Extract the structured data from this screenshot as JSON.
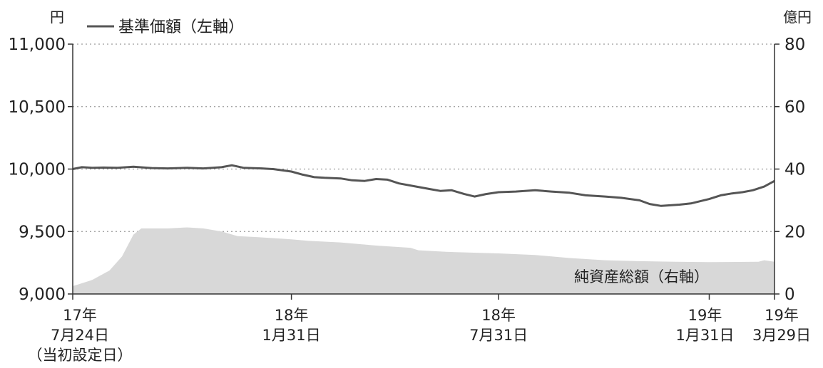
{
  "chart_data": {
    "type": "line",
    "legend_line": "基準価額（左軸）",
    "area_label": "純資産総額（右軸）",
    "left_axis": {
      "unit": "円",
      "min": 9000,
      "max": 11000,
      "ticks": [
        {
          "value": 9000,
          "label": "9,000"
        },
        {
          "value": 9500,
          "label": "9,500"
        },
        {
          "value": 10000,
          "label": "10,000"
        },
        {
          "value": 10500,
          "label": "10,500"
        },
        {
          "value": 11000,
          "label": "11,000"
        }
      ]
    },
    "right_axis": {
      "unit": "億円",
      "min": 0,
      "max": 80,
      "ticks": [
        {
          "value": 0,
          "label": "0"
        },
        {
          "value": 20,
          "label": "20"
        },
        {
          "value": 40,
          "label": "40"
        },
        {
          "value": 60,
          "label": "60"
        },
        {
          "value": 80,
          "label": "80"
        }
      ]
    },
    "x_axis": {
      "start": "2017-07-24",
      "end": "2019-03-29",
      "ticks": [
        {
          "date": "2017-07-24",
          "lines": [
            "17年",
            "7月24日",
            "（当初設定日）"
          ]
        },
        {
          "date": "2018-01-31",
          "lines": [
            "18年",
            "1月31日"
          ]
        },
        {
          "date": "2018-07-31",
          "lines": [
            "18年",
            "7月31日"
          ]
        },
        {
          "date": "2019-01-31",
          "lines": [
            "19年",
            "1月31日"
          ]
        },
        {
          "date": "2019-03-29",
          "lines": [
            "19年",
            "3月29日"
          ]
        }
      ]
    },
    "gridlines": true,
    "series": [
      {
        "name": "基準価額",
        "axis": "left",
        "color": "#555555",
        "points": [
          [
            "2017-07-24",
            10000
          ],
          [
            "2017-08-01",
            10015
          ],
          [
            "2017-08-10",
            10010
          ],
          [
            "2017-08-20",
            10012
          ],
          [
            "2017-09-01",
            10010
          ],
          [
            "2017-09-15",
            10018
          ],
          [
            "2017-10-01",
            10008
          ],
          [
            "2017-10-15",
            10005
          ],
          [
            "2017-11-01",
            10010
          ],
          [
            "2017-11-15",
            10005
          ],
          [
            "2017-12-01",
            10015
          ],
          [
            "2017-12-10",
            10030
          ],
          [
            "2017-12-20",
            10010
          ],
          [
            "2018-01-05",
            10005
          ],
          [
            "2018-01-15",
            10000
          ],
          [
            "2018-01-31",
            9980
          ],
          [
            "2018-02-10",
            9955
          ],
          [
            "2018-02-20",
            9935
          ],
          [
            "2018-03-01",
            9930
          ],
          [
            "2018-03-15",
            9925
          ],
          [
            "2018-03-25",
            9910
          ],
          [
            "2018-04-05",
            9905
          ],
          [
            "2018-04-15",
            9920
          ],
          [
            "2018-04-25",
            9915
          ],
          [
            "2018-05-05",
            9885
          ],
          [
            "2018-05-20",
            9860
          ],
          [
            "2018-06-01",
            9840
          ],
          [
            "2018-06-10",
            9825
          ],
          [
            "2018-06-20",
            9830
          ],
          [
            "2018-07-01",
            9800
          ],
          [
            "2018-07-10",
            9780
          ],
          [
            "2018-07-20",
            9800
          ],
          [
            "2018-07-31",
            9815
          ],
          [
            "2018-08-15",
            9820
          ],
          [
            "2018-09-01",
            9830
          ],
          [
            "2018-09-15",
            9820
          ],
          [
            "2018-10-01",
            9810
          ],
          [
            "2018-10-15",
            9790
          ],
          [
            "2018-11-01",
            9780
          ],
          [
            "2018-11-15",
            9770
          ],
          [
            "2018-12-01",
            9750
          ],
          [
            "2018-12-10",
            9720
          ],
          [
            "2018-12-20",
            9705
          ],
          [
            "2019-01-05",
            9715
          ],
          [
            "2019-01-15",
            9725
          ],
          [
            "2019-01-31",
            9760
          ],
          [
            "2019-02-10",
            9790
          ],
          [
            "2019-02-20",
            9805
          ],
          [
            "2019-03-01",
            9815
          ],
          [
            "2019-03-10",
            9830
          ],
          [
            "2019-03-20",
            9860
          ],
          [
            "2019-03-29",
            9905
          ]
        ]
      },
      {
        "name": "純資産総額",
        "axis": "right",
        "type": "area",
        "color": "#d8d8d8",
        "points": [
          [
            "2017-07-24",
            2.5
          ],
          [
            "2017-08-10",
            4.5
          ],
          [
            "2017-08-25",
            7.5
          ],
          [
            "2017-09-05",
            12
          ],
          [
            "2017-09-15",
            19
          ],
          [
            "2017-09-22",
            21
          ],
          [
            "2017-10-15",
            21
          ],
          [
            "2017-11-01",
            21.3
          ],
          [
            "2017-11-15",
            21
          ],
          [
            "2017-12-01",
            20
          ],
          [
            "2017-12-15",
            18.5
          ],
          [
            "2018-01-01",
            18.2
          ],
          [
            "2018-01-31",
            17.5
          ],
          [
            "2018-02-15",
            17
          ],
          [
            "2018-03-15",
            16.5
          ],
          [
            "2018-04-15",
            15.5
          ],
          [
            "2018-05-15",
            14.8
          ],
          [
            "2018-05-22",
            14
          ],
          [
            "2018-06-15",
            13.5
          ],
          [
            "2018-07-31",
            13
          ],
          [
            "2018-09-01",
            12.5
          ],
          [
            "2018-10-01",
            11.5
          ],
          [
            "2018-11-01",
            10.8
          ],
          [
            "2018-12-01",
            10.5
          ],
          [
            "2019-01-01",
            10.3
          ],
          [
            "2019-01-31",
            10.2
          ],
          [
            "2019-03-15",
            10.3
          ],
          [
            "2019-03-20",
            10.8
          ],
          [
            "2019-03-29",
            10.3
          ]
        ]
      }
    ]
  }
}
